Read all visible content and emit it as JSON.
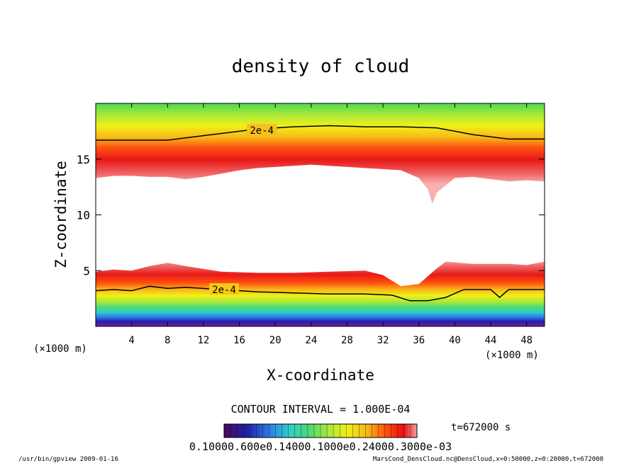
{
  "chart_data": {
    "type": "heatmap",
    "title": "density of cloud",
    "xlabel": "X-coordinate",
    "ylabel": "Z-coordinate",
    "x_unit": "(×1000 m)",
    "y_unit": "(×1000 m)",
    "xlim": [
      0,
      50
    ],
    "ylim": [
      0,
      20
    ],
    "x_ticks": [
      4,
      8,
      12,
      16,
      20,
      24,
      28,
      32,
      36,
      40,
      44,
      48
    ],
    "y_ticks": [
      5,
      10,
      15
    ],
    "contour_interval_text": "CONTOUR INTERVAL = 1.000E-04",
    "contour_labels": [
      {
        "text": "2e-4",
        "x": 18.5,
        "z": 17.6
      },
      {
        "text": "2e-4",
        "x": 14.3,
        "z": 3.3
      }
    ],
    "time_label": "t=672000 s",
    "colorbar_tick_text": "0.10000.600e0.14000.1000e0.24000.3000e-03",
    "colorbar_range": [
      0,
      0.0003
    ],
    "colormap": [
      "#4a0a5a",
      "#2020a8",
      "#2f7fe8",
      "#2fd0c8",
      "#4cd87a",
      "#a8e838",
      "#f0f018",
      "#f8b818",
      "#ff5010",
      "#e81010",
      "#f4a0a0"
    ],
    "upper_layer_contour_2e4": {
      "x": [
        0,
        4,
        8,
        10,
        14,
        18,
        22,
        26,
        30,
        34,
        38,
        42,
        46,
        50
      ],
      "z": [
        16.7,
        16.7,
        16.7,
        16.9,
        17.3,
        17.7,
        17.9,
        18.0,
        17.9,
        17.9,
        17.8,
        17.2,
        16.8,
        16.8
      ]
    },
    "upper_layer_bottom": {
      "x": [
        0,
        2,
        4,
        6,
        8,
        10,
        12,
        14,
        16,
        18,
        20,
        22,
        24,
        26,
        28,
        30,
        32,
        34,
        36,
        37,
        37.5,
        38,
        40,
        42,
        44,
        46,
        48,
        50
      ],
      "z": [
        13.3,
        13.5,
        13.5,
        13.4,
        13.4,
        13.2,
        13.4,
        13.7,
        14.0,
        14.2,
        14.3,
        14.4,
        14.5,
        14.4,
        14.3,
        14.2,
        14.1,
        14.0,
        13.3,
        12.3,
        11.0,
        12.0,
        13.3,
        13.4,
        13.2,
        13.0,
        13.1,
        13.0
      ]
    },
    "lower_layer_top": {
      "x": [
        0,
        2,
        4,
        6,
        8,
        10,
        14,
        18,
        22,
        26,
        30,
        32,
        34,
        36,
        37,
        38,
        39,
        42,
        46,
        48,
        50
      ],
      "z": [
        4.9,
        5.1,
        5.0,
        5.4,
        5.7,
        5.4,
        4.9,
        4.8,
        4.8,
        4.9,
        5.0,
        4.6,
        3.6,
        3.8,
        4.5,
        5.2,
        5.8,
        5.6,
        5.6,
        5.5,
        5.8
      ]
    },
    "lower_layer_contour_2e4": {
      "x": [
        0,
        2,
        4,
        6,
        8,
        10,
        14,
        18,
        22,
        26,
        30,
        33,
        35,
        37,
        39,
        41,
        44,
        45,
        46,
        48,
        50
      ],
      "z": [
        3.2,
        3.3,
        3.2,
        3.6,
        3.4,
        3.5,
        3.3,
        3.1,
        3.0,
        2.9,
        2.9,
        2.8,
        2.3,
        2.3,
        2.6,
        3.3,
        3.3,
        2.6,
        3.3,
        3.3,
        3.3
      ]
    },
    "lower_layer_bottom": {
      "x": [
        0,
        50
      ],
      "z": [
        0.3,
        0.3
      ]
    }
  },
  "footer": {
    "left": "/usr/bin/gpview  2009-01-16",
    "right": "MarsCond_DensCloud.nc@DensCloud,x=0:50000,z=0:20000,t=672000"
  }
}
